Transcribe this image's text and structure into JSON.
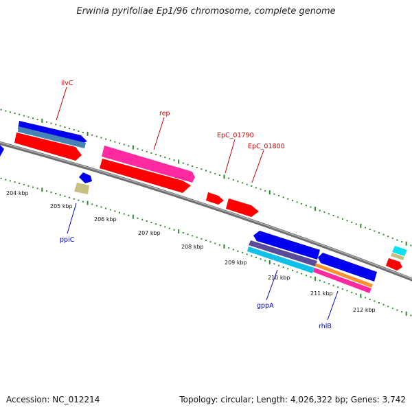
{
  "title": "Erwinia pyrifoliae Ep1/96 chromosome, complete genome",
  "footer": {
    "accession": "Accession: NC_012214",
    "summary": "Topology: circular; Length: 4,026,322 bp; Genes: 3,742"
  },
  "colors": {
    "backbone": "#808080",
    "tick_dots": "#2a8a2a",
    "label_top": "#cc0000",
    "label_bottom": "#0000cc",
    "gene_red": "#ff0000",
    "gene_blue": "#0000ee",
    "gene_pink": "#ff2aa0",
    "gene_steel": "#4682b4",
    "gene_purple": "#5a4a9a",
    "gene_cyan": "#10c0e8",
    "gene_khaki": "#c8c080",
    "gene_orange": "#ff9030"
  },
  "scale_labels": [
    "204 kbp",
    "205 kbp",
    "206 kbp",
    "207 kbp",
    "208 kbp",
    "209 kbp",
    "210 kbp",
    "211 kbp",
    "212 kbp"
  ],
  "gene_labels_top": [
    "ilvC",
    "rep",
    "EpC_01790",
    "EpC_01800"
  ],
  "gene_labels_bottom": [
    "ppiC",
    "gppA",
    "rhlB"
  ]
}
